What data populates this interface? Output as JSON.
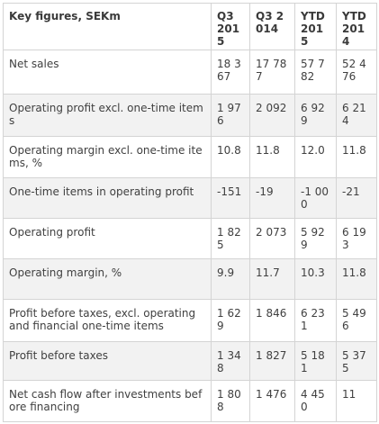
{
  "table": {
    "headers": [
      "Key figures, SEKm",
      "Q3 2015",
      "Q3 2014",
      "YTD 2015",
      "YTD 2014"
    ],
    "rows": [
      {
        "label": "Net sales",
        "values": [
          "18 367",
          "17 787",
          "57 782",
          "52 476"
        ]
      },
      {
        "label": "Operating profit excl. one-time items",
        "values": [
          "1 976",
          "2 092",
          "6 929",
          "6 214"
        ]
      },
      {
        "label": "Operating margin excl. one-time items, %",
        "values": [
          "10.8",
          "11.8",
          "12.0",
          "11.8"
        ]
      },
      {
        "label": "One-time items in operating profit",
        "values": [
          "-151",
          "-19",
          "-1 000",
          "-21"
        ]
      },
      {
        "label": "Operating profit",
        "values": [
          "1 825",
          "2 073",
          "5 929",
          "6 193"
        ]
      },
      {
        "label": "Operating margin, %",
        "values": [
          "9.9",
          "11.7",
          "10.3",
          "11.8"
        ]
      },
      {
        "label": "Profit before taxes, excl. operating and financial one-time items",
        "values": [
          "1 629",
          "1 846",
          "6 231",
          "5 496"
        ]
      },
      {
        "label": "Profit before taxes",
        "values": [
          "1 348",
          "1 827",
          "5 181",
          "5 375"
        ]
      },
      {
        "label": "Net cash flow after investments before financing",
        "values": [
          "1 808",
          "1 476",
          "4 450",
          "11"
        ]
      }
    ]
  }
}
